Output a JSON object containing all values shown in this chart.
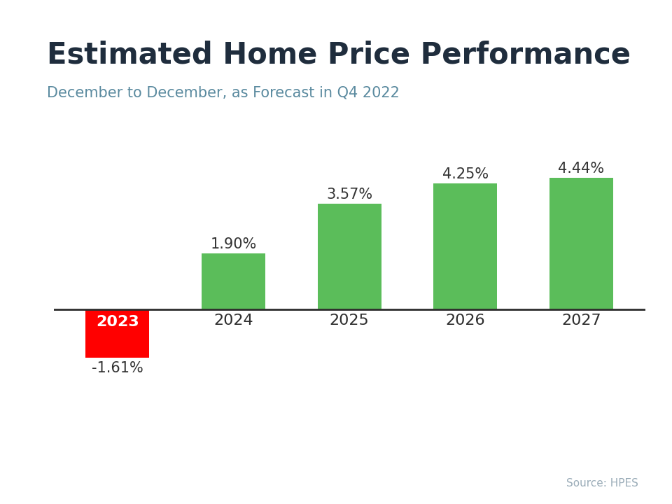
{
  "title": "Estimated Home Price Performance",
  "subtitle": "December to December, as Forecast in Q4 2022",
  "source": "Source: HPES",
  "categories": [
    "2023",
    "2024",
    "2025",
    "2026",
    "2027"
  ],
  "values": [
    -1.61,
    1.9,
    3.57,
    4.25,
    4.44
  ],
  "labels": [
    "-1.61%",
    "1.90%",
    "3.57%",
    "4.25%",
    "4.44%"
  ],
  "bar_colors": [
    "#FF0000",
    "#5BBD5A",
    "#5BBD5A",
    "#5BBD5A",
    "#5BBD5A"
  ],
  "title_color": "#1f2d3d",
  "subtitle_color": "#5a8a9f",
  "source_color": "#9aacb8",
  "label_color": "#333333",
  "year_label_color_2023": "#FFFFFF",
  "year_label_color_rest": "#2d2d2d",
  "top_stripe_color": "#29ABE2",
  "background_color": "#FFFFFF",
  "ylim_min": -2.8,
  "ylim_max": 6.0,
  "title_fontsize": 30,
  "subtitle_fontsize": 15,
  "label_fontsize": 15,
  "year_fontsize": 16,
  "source_fontsize": 11,
  "bar_width": 0.55
}
